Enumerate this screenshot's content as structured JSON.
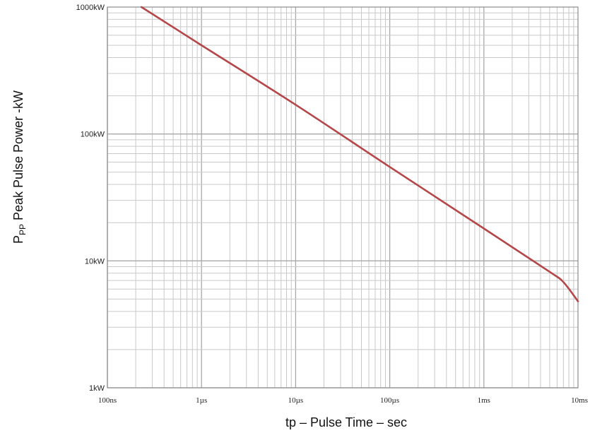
{
  "chart_data": {
    "type": "line",
    "title": "",
    "xlabel": "tp – Pulse Time – sec",
    "ylabel_main": "P",
    "ylabel_sub": "PP",
    "ylabel_rest": " Peak Pulse Power -kW",
    "x_scale": "log",
    "y_scale": "log",
    "xlim": [
      1e-07,
      0.01
    ],
    "ylim": [
      1,
      1000
    ],
    "grid": true,
    "x_ticks": [
      {
        "value": 1e-07,
        "label": "100ns"
      },
      {
        "value": 1e-06,
        "label": "1µs"
      },
      {
        "value": 1e-05,
        "label": "10µs"
      },
      {
        "value": 0.0001,
        "label": "100µs"
      },
      {
        "value": 0.001,
        "label": "1ms"
      },
      {
        "value": 0.01,
        "label": "10ms"
      }
    ],
    "y_ticks": [
      {
        "value": 1,
        "label": "1kW"
      },
      {
        "value": 10,
        "label": "10kW"
      },
      {
        "value": 100,
        "label": "100kW"
      },
      {
        "value": 1000,
        "label": "1000kW"
      }
    ],
    "series": [
      {
        "color": "#b5464a",
        "x": [
          2.3e-07,
          1e-06,
          1e-05,
          0.0001,
          0.001,
          0.005,
          0.007,
          0.01
        ],
        "y": [
          1000,
          500,
          170,
          55,
          18,
          8.2,
          6.8,
          4.8
        ]
      }
    ]
  }
}
